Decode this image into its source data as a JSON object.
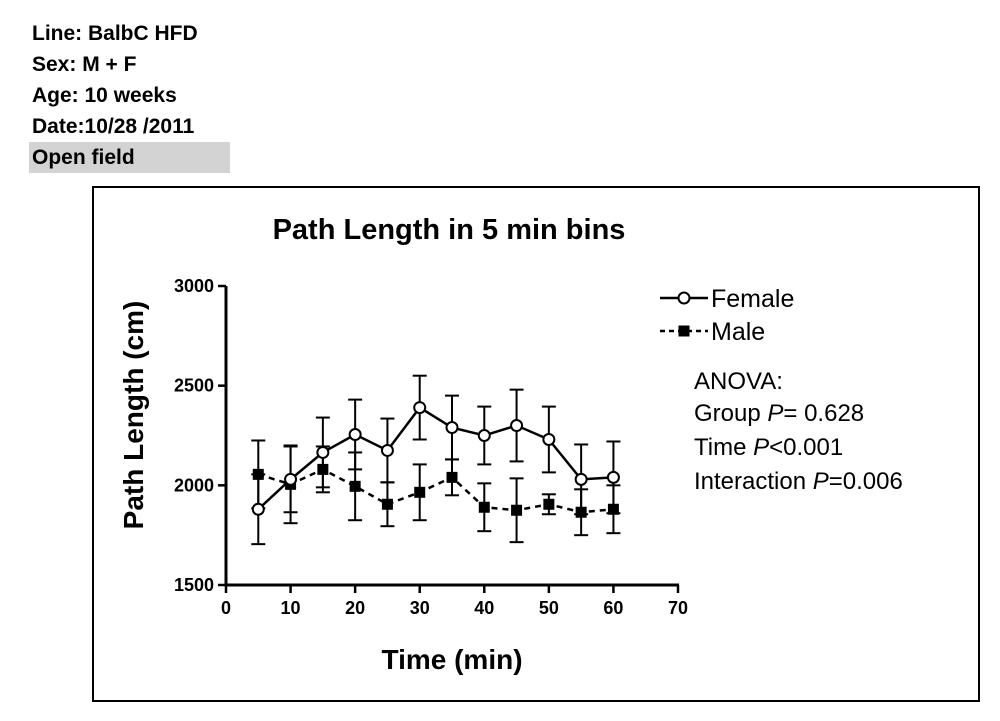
{
  "meta": {
    "line": "Line: BalbC HFD",
    "sex": "Sex: M + F",
    "age": "Age: 10 weeks",
    "date": "Date:10/28 /2011",
    "test": "Open field"
  },
  "stats": {
    "heading": "ANOVA:",
    "group_label": "Group ",
    "group_p": "P",
    "group_value": "= 0.628",
    "time_label": "Time ",
    "time_p": "P",
    "time_value": "<0.001",
    "interaction_label": "Interaction ",
    "interaction_p": "P",
    "interaction_value": "=0.006"
  },
  "chart_data": {
    "type": "line",
    "title": "Path Length in 5 min bins",
    "xlabel": "Time (min)",
    "ylabel": "Path Length (cm)",
    "xlim": [
      0,
      70
    ],
    "ylim": [
      1500,
      3000
    ],
    "x_ticks": [
      0,
      10,
      20,
      30,
      40,
      50,
      60,
      70
    ],
    "y_ticks": [
      1500,
      2000,
      2500,
      3000
    ],
    "grid": false,
    "legend_position": "top-right",
    "error_bars": true,
    "series": [
      {
        "name": "Female",
        "marker": "open-circle",
        "line_style": "solid",
        "color": "#000000",
        "x": [
          5,
          10,
          15,
          20,
          25,
          30,
          35,
          40,
          45,
          50,
          55,
          60
        ],
        "y": [
          1880,
          2030,
          2165,
          2255,
          2175,
          2390,
          2290,
          2250,
          2300,
          2230,
          2030,
          2040
        ],
        "error": [
          175,
          165,
          175,
          175,
          160,
          160,
          160,
          145,
          180,
          165,
          175,
          180
        ]
      },
      {
        "name": "Male",
        "marker": "filled-square",
        "line_style": "dashed",
        "color": "#000000",
        "x": [
          5,
          10,
          15,
          20,
          25,
          30,
          35,
          40,
          45,
          50,
          55,
          60
        ],
        "y": [
          2055,
          2005,
          2080,
          1995,
          1905,
          1965,
          2040,
          1890,
          1875,
          1905,
          1865,
          1880
        ],
        "error": [
          170,
          195,
          115,
          170,
          110,
          140,
          90,
          120,
          160,
          50,
          115,
          120
        ]
      }
    ]
  }
}
